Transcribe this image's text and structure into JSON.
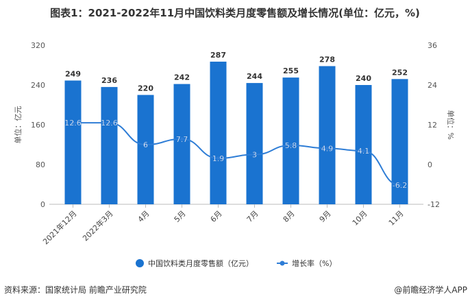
{
  "title": "图表1：2021-2022年11月中国饮料类月度零售额及增长情况(单位：亿元，%)",
  "source": "资料来源：国家统计局 前瞻产业研究院",
  "brand": "@前瞻经济学人APP",
  "chart_data": {
    "type": "bar+line",
    "categories": [
      "2021年12月",
      "2022年3月",
      "4月",
      "5月",
      "6月",
      "7月",
      "8月",
      "9月",
      "10月",
      "11月"
    ],
    "series": [
      {
        "name": "中国饮料类月度零售额（亿元）",
        "type": "bar",
        "axis": "left",
        "values": [
          249,
          236,
          220,
          242,
          287,
          244,
          255,
          278,
          240,
          252
        ],
        "color": "#1a73d0"
      },
      {
        "name": "增长率（%）",
        "type": "line",
        "axis": "right",
        "values": [
          12.6,
          12.6,
          6,
          7.7,
          1.9,
          3,
          5.8,
          4.9,
          4.1,
          -6.2
        ],
        "color": "#2e7dd6"
      }
    ],
    "ylabel": "单位：亿元",
    "y2label": "单位：%",
    "ylim": [
      0,
      320
    ],
    "yticks": [
      0,
      80,
      160,
      240,
      320
    ],
    "y2lim": [
      -12,
      36
    ],
    "y2ticks": [
      -12,
      0,
      12,
      24,
      36
    ],
    "legend": "bottom",
    "grid": false
  }
}
